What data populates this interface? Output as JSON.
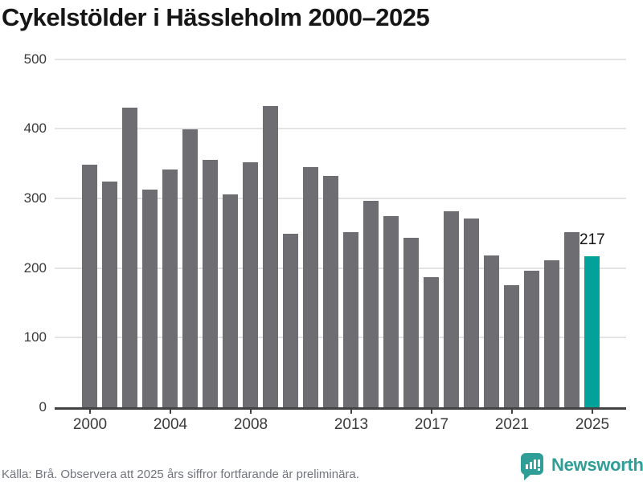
{
  "title": "Cykelstölder i Hässleholm 2000–2025",
  "footer": {
    "source_note": "Källa: Brå. Observera att 2025 års siffror fortfarande är preliminära."
  },
  "branding": {
    "logo_text": "Newsworthy",
    "logo_icon": "bar-chart-speech-bubble-icon",
    "brand_color": "#2f9e97"
  },
  "annotation": {
    "label": "217",
    "year": 2025
  },
  "colors": {
    "bar": "#6e6d72",
    "highlight": "#00a29a",
    "gridline": "#e4e4e4",
    "axis": "#424242"
  },
  "chart_data": {
    "type": "bar",
    "title": "Cykelstölder i Hässleholm 2000–2025",
    "categories": [
      2000,
      2001,
      2002,
      2003,
      2004,
      2005,
      2006,
      2007,
      2008,
      2009,
      2010,
      2011,
      2012,
      2013,
      2014,
      2015,
      2016,
      2017,
      2018,
      2019,
      2020,
      2021,
      2022,
      2023,
      2024,
      2025
    ],
    "values": [
      348,
      324,
      430,
      313,
      341,
      399,
      355,
      306,
      352,
      432,
      249,
      345,
      332,
      251,
      296,
      275,
      243,
      187,
      282,
      271,
      218,
      175,
      196,
      211,
      252,
      217
    ],
    "highlight_category": 2025,
    "highlight_value": 217,
    "xlabel": "",
    "ylabel": "",
    "ylim": [
      0,
      500
    ],
    "yticks": [
      0,
      100,
      200,
      300,
      400,
      500
    ],
    "xtick_labels": [
      "2000",
      "2004",
      "2008",
      "2013",
      "2017",
      "2021",
      "2025"
    ],
    "xtick_years": [
      2000,
      2004,
      2008,
      2013,
      2017,
      2021,
      2025
    ],
    "grid": "horizontal",
    "legend": "none",
    "bar_color": "#6e6d72",
    "highlight_color": "#00a29a"
  }
}
